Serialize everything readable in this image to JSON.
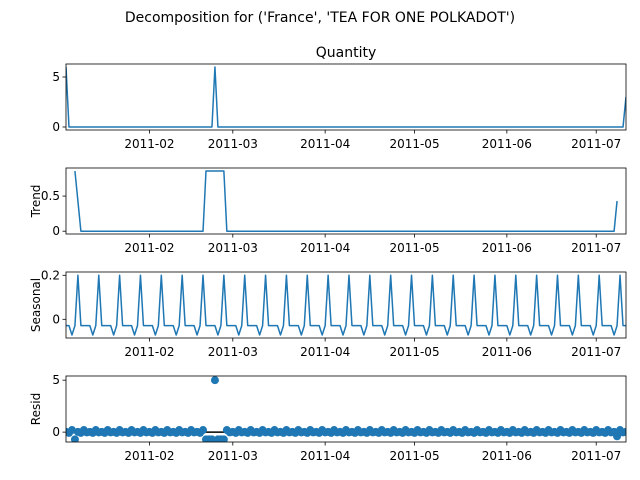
{
  "figure": {
    "suptitle": "Decomposition for ('France', 'TEA FOR ONE POLKADOT')"
  },
  "chart_data": {
    "type": "line",
    "x_start": "2011-01-04",
    "x_end": "2011-07-11",
    "x_ticks": [
      "2011-02",
      "2011-03",
      "2011-04",
      "2011-05",
      "2011-06",
      "2011-07"
    ],
    "panels": [
      {
        "name": "observed",
        "title": "Quantity",
        "ylabel": "",
        "kind": "line",
        "ylim": [
          -0.3,
          6.3
        ],
        "yticks": [
          0,
          5
        ],
        "zero_line": false,
        "baseline": 0,
        "points": [
          [
            "2011-01-04",
            6
          ],
          [
            "2011-01-05",
            0
          ],
          [
            "2011-02-22",
            0
          ],
          [
            "2011-02-23",
            6
          ],
          [
            "2011-02-24",
            0
          ],
          [
            "2011-07-10",
            0
          ],
          [
            "2011-07-11",
            3
          ]
        ]
      },
      {
        "name": "trend",
        "title": "",
        "ylabel": "Trend",
        "kind": "line",
        "ylim": [
          -0.04,
          0.9
        ],
        "yticks": [
          0,
          0.5
        ],
        "zero_line": false,
        "baseline": 0,
        "points": [
          [
            "2011-01-07",
            0.857
          ],
          [
            "2011-01-09",
            0
          ],
          [
            "2011-02-19",
            0
          ],
          [
            "2011-02-20",
            0.857
          ],
          [
            "2011-02-26",
            0.857
          ],
          [
            "2011-02-27",
            0
          ],
          [
            "2011-07-07",
            0
          ],
          [
            "2011-07-08",
            0.43
          ]
        ]
      },
      {
        "name": "seasonal",
        "title": "",
        "ylabel": "Seasonal",
        "kind": "seasonal",
        "ylim": [
          -0.085,
          0.215
        ],
        "yticks": [
          0,
          0.2
        ],
        "zero_line": false,
        "period_pattern": [
          -0.0286,
          -0.0286,
          -0.0714,
          -0.0286,
          0.2,
          -0.0286,
          -0.0286
        ],
        "pattern_start": "2011-01-04"
      },
      {
        "name": "resid",
        "title": "",
        "ylabel": "Resid",
        "kind": "scatter",
        "ylim": [
          -0.95,
          5.4
        ],
        "yticks": [
          0,
          5
        ],
        "zero_line": true,
        "default_value": 0.0286,
        "noise": [
          0.0286,
          -0.0714,
          0.2,
          -0.0286
        ],
        "outliers": [
          [
            "2011-01-07",
            -0.7
          ],
          [
            "2011-02-20",
            -0.7
          ],
          [
            "2011-02-21",
            -0.7
          ],
          [
            "2011-02-22",
            -0.7
          ],
          [
            "2011-02-23",
            5.0
          ],
          [
            "2011-02-24",
            -0.7
          ],
          [
            "2011-02-25",
            -0.7
          ],
          [
            "2011-02-26",
            -0.7
          ],
          [
            "2011-07-08",
            -0.4
          ]
        ]
      }
    ]
  }
}
